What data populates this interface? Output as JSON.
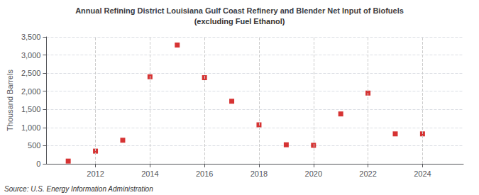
{
  "chart_data": {
    "type": "scatter",
    "title": "Annual Refining District Louisiana Gulf Coast Refinery and Blender Net Input of Biofuels",
    "subtitle": "(excluding Fuel Ethanol)",
    "y_label": "Thousand Barrels",
    "source": "Source: U.S. Energy Information Administration",
    "x": [
      2011,
      2012,
      2013,
      2014,
      2015,
      2016,
      2017,
      2018,
      2019,
      2020,
      2021,
      2022,
      2023,
      2024
    ],
    "values": [
      75,
      350,
      650,
      2400,
      3275,
      2375,
      1725,
      1075,
      525,
      510,
      1375,
      1950,
      825,
      825
    ],
    "color": "#cc0000",
    "marker": "square",
    "xlim": [
      2010.2,
      2025.5
    ],
    "xticks": [
      2012,
      2014,
      2016,
      2018,
      2020,
      2022,
      2024
    ],
    "ylim": [
      0,
      3500
    ],
    "yticks": [
      0,
      500,
      {
        "value": 1000,
        "label": "1,000"
      },
      {
        "value": 1500,
        "label": "1,500"
      },
      {
        "value": 2000,
        "label": "2,000"
      },
      {
        "value": 2500,
        "label": "2,500"
      },
      {
        "value": 3000,
        "label": "3,000"
      },
      {
        "value": 3500,
        "label": "3,500"
      }
    ],
    "grid": true
  }
}
